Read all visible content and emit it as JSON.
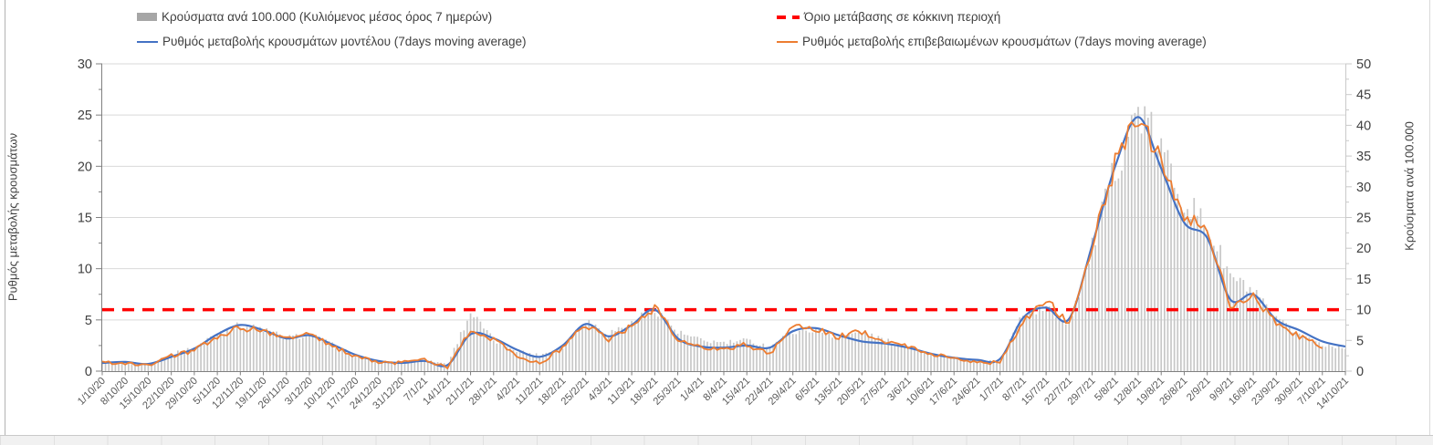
{
  "legend": {
    "bars_label": "Κρούσματα ανά 100.000 (Κυλιόμενος μέσος όρος 7 ημερών)",
    "model_label": "Ρυθμός μεταβολής κρουσμάτων μοντέλου (7days moving average)",
    "threshold_label": "Όριο μετάβασης σε κόκκινη περιοχή",
    "confirmed_label": "Ρυθμός μεταβολής επιβεβαιωμένων κρουσμάτων (7days moving average)"
  },
  "axes": {
    "left_title": "Ρυθμός μεταβολής κρουσμάτων",
    "right_title": "Κρούσματα ανά 100.000",
    "left_ticks": [
      0,
      5,
      10,
      15,
      20,
      25,
      30
    ],
    "right_ticks": [
      0,
      5,
      10,
      15,
      20,
      25,
      30,
      35,
      40,
      45,
      50
    ],
    "left_range": [
      0,
      30
    ],
    "right_range": [
      0,
      50
    ]
  },
  "colors": {
    "model_line": "#4472C4",
    "confirmed_line": "#ED7D31",
    "threshold_line": "#FF0000",
    "bars": "#c7c7c7",
    "legend_bar_swatch": "#a6a6a6",
    "grid": "#d9d9d9",
    "axis": "#808080",
    "tick_text": "#404040",
    "x_label_text": "#595959"
  },
  "chart_data": {
    "type": "combo: daily bars (right axis) + 2 lines (left axis) + dashed threshold",
    "sampling_note": "values estimated at the weekly x tick dates; figure draws daily data",
    "legend_position": "top",
    "grid": "horizontal only, every 5 left-axis units",
    "x_labels": [
      "1/10/20",
      "8/10/20",
      "15/10/20",
      "22/10/20",
      "29/10/20",
      "5/11/20",
      "12/11/20",
      "19/11/20",
      "26/11/20",
      "3/12/20",
      "10/12/20",
      "17/12/20",
      "24/12/20",
      "31/12/20",
      "7/1/21",
      "14/1/21",
      "21/1/21",
      "28/1/21",
      "4/2/21",
      "11/2/21",
      "18/2/21",
      "25/2/21",
      "4/3/21",
      "11/3/21",
      "18/3/21",
      "25/3/21",
      "1/4/21",
      "8/4/21",
      "15/4/21",
      "22/4/21",
      "29/4/21",
      "6/5/21",
      "13/5/21",
      "20/5/21",
      "27/5/21",
      "3/6/21",
      "10/6/21",
      "17/6/21",
      "24/6/21",
      "1/7/21",
      "8/7/21",
      "15/7/21",
      "22/7/21",
      "29/7/21",
      "5/8/21",
      "12/8/21",
      "19/8/21",
      "26/8/21",
      "2/9/21",
      "9/9/21",
      "16/9/21",
      "23/9/21",
      "30/9/21",
      "7/10/21",
      "14/10/21"
    ],
    "series": [
      {
        "name": "Κρούσματα ανά 100.000 (Κυλιόμενος μέσος όρος 7 ημερών)",
        "type": "bar",
        "axis": "right",
        "weekly_values": [
          1.5,
          1.5,
          1.2,
          2.8,
          3.8,
          6.2,
          7.5,
          6.8,
          5.4,
          6.0,
          4.3,
          2.6,
          1.6,
          1.4,
          1.8,
          1.2,
          9.6,
          5.0,
          3.4,
          2.6,
          4.0,
          8.3,
          6.2,
          7.8,
          10.3,
          6.3,
          5.0,
          4.6,
          5.0,
          4.0,
          6.5,
          6.8,
          5.6,
          6.4,
          5.0,
          4.0,
          2.9,
          2.2,
          1.7,
          1.6,
          9.5,
          10.2,
          7.8,
          20,
          33,
          42.5,
          36,
          28,
          23.5,
          15.5,
          12.8,
          8.3,
          6.0,
          4.4,
          3.8
        ],
        "max_daily_value": 44
      },
      {
        "name": "Ρυθμός μεταβολής κρουσμάτων μοντέλου (7days moving average)",
        "type": "line",
        "axis": "left",
        "color": "#4472C4",
        "weekly_values": [
          0.8,
          0.9,
          0.7,
          1.4,
          2.2,
          3.6,
          4.5,
          4.0,
          3.2,
          3.5,
          2.6,
          1.6,
          1.0,
          0.8,
          1.0,
          0.6,
          3.6,
          3.2,
          2.1,
          1.4,
          2.5,
          4.6,
          3.4,
          4.5,
          6.0,
          3.2,
          2.4,
          2.3,
          2.5,
          2.3,
          3.9,
          4.2,
          3.5,
          2.9,
          2.7,
          2.3,
          1.7,
          1.3,
          1.1,
          1.2,
          5.2,
          6.2,
          5.1,
          12.3,
          20,
          24.8,
          19.8,
          14.5,
          13.0,
          7.0,
          7.5,
          5.0,
          4.0,
          2.9,
          2.4
        ],
        "peak_value": 25.4
      },
      {
        "name": "Ρυθμός μεταβολής επιβεβαιωμένων κρουσμάτων (7days moving average)",
        "type": "line",
        "axis": "left",
        "color": "#ED7D31",
        "weekly_values": [
          0.8,
          0.8,
          0.6,
          1.5,
          2.0,
          3.4,
          4.3,
          3.9,
          3.4,
          3.6,
          2.4,
          1.5,
          0.9,
          0.8,
          1.1,
          0.4,
          4.0,
          3.0,
          1.6,
          0.7,
          2.3,
          4.6,
          3.1,
          4.4,
          6.2,
          3.0,
          2.3,
          2.2,
          2.6,
          1.7,
          4.5,
          4.0,
          3.4,
          3.9,
          2.9,
          2.4,
          1.7,
          1.2,
          0.9,
          0.8,
          5.0,
          6.9,
          4.7,
          12.5,
          20.3,
          25.3,
          20.7,
          15.0,
          13.8,
          6.3,
          7.2,
          4.8,
          3.4,
          2.3,
          null
        ],
        "peak_value": 25.7
      }
    ],
    "threshold": {
      "name": "Όριο μετάβασης σε κόκκινη περιοχή",
      "left_axis_value": 6,
      "right_axis_value": 10,
      "style": "red dashed"
    },
    "title": "",
    "xlabel": "",
    "ylabel_left": "Ρυθμός μεταβολής κρουσμάτων",
    "ylabel_right": "Κρούσματα ανά 100.000"
  }
}
